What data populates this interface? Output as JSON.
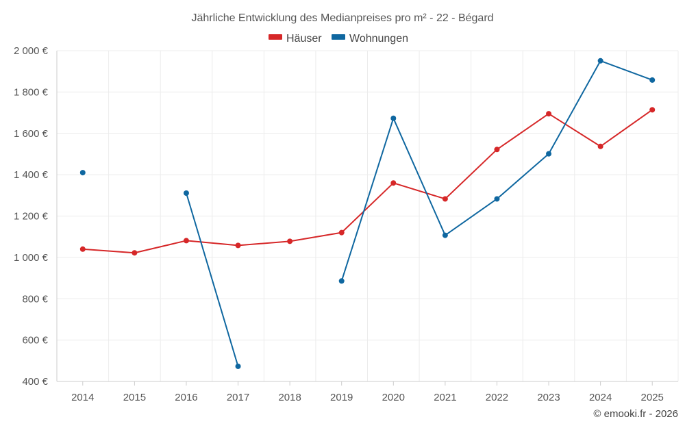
{
  "chart_data": {
    "type": "line",
    "title": "Jährliche Entwicklung des Medianpreises pro m² - 22 - Bégard",
    "categories": [
      "2014",
      "2015",
      "2016",
      "2017",
      "2018",
      "2019",
      "2020",
      "2021",
      "2022",
      "2023",
      "2024",
      "2025"
    ],
    "ylim": [
      400,
      2000
    ],
    "y_ticks": [
      400,
      600,
      800,
      1000,
      1200,
      1400,
      1600,
      1800,
      2000
    ],
    "y_tick_labels": [
      "400 €",
      "600 €",
      "800 €",
      "1 000 €",
      "1 200 €",
      "1 400 €",
      "1 600 €",
      "1 800 €",
      "2 000 €"
    ],
    "grid": true,
    "legend_position": "top-center",
    "series": [
      {
        "name": "Häuser",
        "color": "#d62728",
        "values": [
          1040,
          1022,
          1081,
          1058,
          1078,
          1120,
          1360,
          1283,
          1522,
          1695,
          1537,
          1714
        ]
      },
      {
        "name": "Wohnungen",
        "color": "#0f67a0",
        "values": [
          1410,
          null,
          1311,
          473,
          null,
          886,
          1673,
          1107,
          1283,
          1501,
          1951,
          1858
        ]
      }
    ]
  },
  "credit": "© emooki.fr - 2026"
}
